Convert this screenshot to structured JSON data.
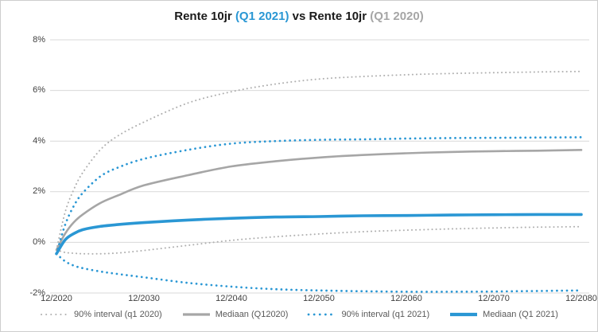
{
  "title": {
    "parts": [
      {
        "text": "Rente 10jr ",
        "color": "#1a1a1a"
      },
      {
        "text": "(Q1 2021)",
        "color": "#2a97d4"
      },
      {
        "text": " vs Rente 10jr ",
        "color": "#1a1a1a"
      },
      {
        "text": "(Q1 2020)",
        "color": "#a6a6a6"
      }
    ]
  },
  "colors": {
    "accent_blue": "#2a97d4",
    "gray_median": "#a6a6a6",
    "gray_interval": "#b0b0b0",
    "gridline": "#d9d9d9",
    "axis_text": "#404040",
    "legend_text": "#595959",
    "frame_border": "#cdcdcd",
    "background": "#ffffff"
  },
  "chart_data": {
    "type": "line",
    "title": "Rente 10jr (Q1 2021) vs Rente 10jr (Q1 2020)",
    "grid": "horizontal",
    "legend_position": "bottom",
    "ylim": [
      -2,
      8
    ],
    "xlim_years": [
      2020,
      2080
    ],
    "y_ticks": [
      {
        "value": 8,
        "label": "8%"
      },
      {
        "value": 6,
        "label": "6%"
      },
      {
        "value": 4,
        "label": "4%"
      },
      {
        "value": 2,
        "label": "2%"
      },
      {
        "value": 0,
        "label": "0%"
      },
      {
        "value": -2,
        "label": "-2%"
      }
    ],
    "x_ticks": [
      {
        "year": 2020,
        "label": "12/2020"
      },
      {
        "year": 2030,
        "label": "12/2030"
      },
      {
        "year": 2040,
        "label": "12/2040"
      },
      {
        "year": 2050,
        "label": "12/2050"
      },
      {
        "year": 2060,
        "label": "12/2060"
      },
      {
        "year": 2070,
        "label": "12/2070"
      },
      {
        "year": 2080,
        "label": "12/2080"
      }
    ],
    "x": [
      2020,
      2021,
      2022,
      2023,
      2025,
      2027,
      2030,
      2035,
      2040,
      2045,
      2050,
      2055,
      2060,
      2065,
      2070,
      2075,
      2080
    ],
    "series": [
      {
        "name": "90% interval (q1 2020) upper",
        "legend": "90% interval (q1 2020)",
        "style": "dotted",
        "color": "#b0b0b0",
        "width": 2,
        "values": [
          -0.3,
          1.2,
          2.1,
          2.75,
          3.65,
          4.2,
          4.75,
          5.5,
          5.95,
          6.25,
          6.45,
          6.55,
          6.62,
          6.67,
          6.7,
          6.73,
          6.75
        ]
      },
      {
        "name": "90% interval (q1 2020) lower",
        "legend": null,
        "style": "dotted",
        "color": "#b0b0b0",
        "width": 2,
        "values": [
          -0.3,
          -0.4,
          -0.43,
          -0.45,
          -0.45,
          -0.42,
          -0.32,
          -0.12,
          0.08,
          0.22,
          0.33,
          0.42,
          0.48,
          0.53,
          0.57,
          0.6,
          0.62
        ]
      },
      {
        "name": "Mediaan (Q12020)",
        "legend": "Mediaan (Q12020)",
        "style": "solid",
        "color": "#a6a6a6",
        "width": 2.6,
        "values": [
          -0.3,
          0.35,
          0.8,
          1.1,
          1.55,
          1.85,
          2.25,
          2.65,
          3.0,
          3.2,
          3.35,
          3.45,
          3.52,
          3.57,
          3.6,
          3.62,
          3.65
        ]
      },
      {
        "name": "90% interval (q1 2021) upper",
        "legend": "90% interval (q1 2021)",
        "style": "dotted",
        "color": "#2a97d4",
        "width": 2.7,
        "values": [
          -0.45,
          0.7,
          1.45,
          1.95,
          2.6,
          2.95,
          3.3,
          3.65,
          3.9,
          4.0,
          4.05,
          4.07,
          4.1,
          4.12,
          4.13,
          4.14,
          4.15
        ]
      },
      {
        "name": "90% interval (q1 2021) lower",
        "legend": null,
        "style": "dotted",
        "color": "#2a97d4",
        "width": 2.7,
        "values": [
          -0.45,
          -0.75,
          -0.92,
          -1.02,
          -1.15,
          -1.25,
          -1.38,
          -1.6,
          -1.75,
          -1.85,
          -1.9,
          -1.93,
          -1.95,
          -1.95,
          -1.94,
          -1.92,
          -1.9
        ]
      },
      {
        "name": "Mediaan (Q1 2021)",
        "legend": "Mediaan (Q1 2021)",
        "style": "solid",
        "color": "#2a97d4",
        "width": 3.6,
        "values": [
          -0.45,
          0.1,
          0.35,
          0.5,
          0.63,
          0.7,
          0.78,
          0.88,
          0.95,
          1.0,
          1.02,
          1.05,
          1.06,
          1.08,
          1.09,
          1.1,
          1.1
        ]
      }
    ]
  }
}
